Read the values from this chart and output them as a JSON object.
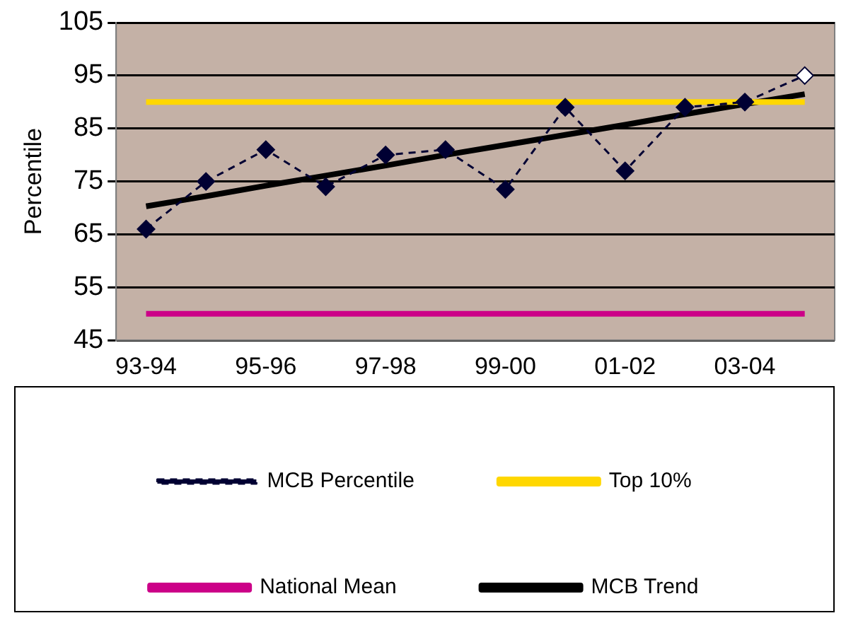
{
  "chart_data": {
    "type": "line",
    "ylabel": "Percentile",
    "categories": [
      "93-94",
      null,
      "95-96",
      null,
      "97-98",
      null,
      "99-00",
      null,
      "01-02",
      null,
      "03-04",
      null
    ],
    "series": [
      {
        "name": "MCB Percentile",
        "color": "#000033",
        "line_style": "dashed",
        "marker": "diamond",
        "colors": [
          "#000033",
          "#000033",
          "#000033",
          "#000033",
          "#000033",
          "#000033",
          "#000033",
          "#000033",
          "#000033",
          "#000033",
          "#000033",
          "#ffffff"
        ],
        "values": [
          66,
          75,
          81,
          74,
          80,
          81,
          73.5,
          89,
          77,
          89,
          90,
          95
        ]
      },
      {
        "name": "Top 10%",
        "color": "#ffd700",
        "line_style": "solid",
        "marker": "none",
        "values": [
          90,
          90,
          90,
          90,
          90,
          90,
          90,
          90,
          90,
          90,
          90,
          90
        ]
      },
      {
        "name": "National Mean",
        "color": "#cc0088",
        "line_style": "solid",
        "marker": "none",
        "values": [
          50,
          50,
          50,
          50,
          50,
          50,
          50,
          50,
          50,
          50,
          50,
          50
        ]
      },
      {
        "name": "MCB Trend",
        "color": "#000000",
        "line_style": "solid",
        "marker": "none",
        "values": [
          70.3,
          72.2,
          74.2,
          76.1,
          78.0,
          80.0,
          81.9,
          83.8,
          85.7,
          87.7,
          89.6,
          91.5
        ]
      }
    ],
    "ylim": [
      45,
      105
    ],
    "yticks": [
      45,
      55,
      65,
      75,
      85,
      95,
      105
    ],
    "grid": "y",
    "legend": "bottom"
  }
}
